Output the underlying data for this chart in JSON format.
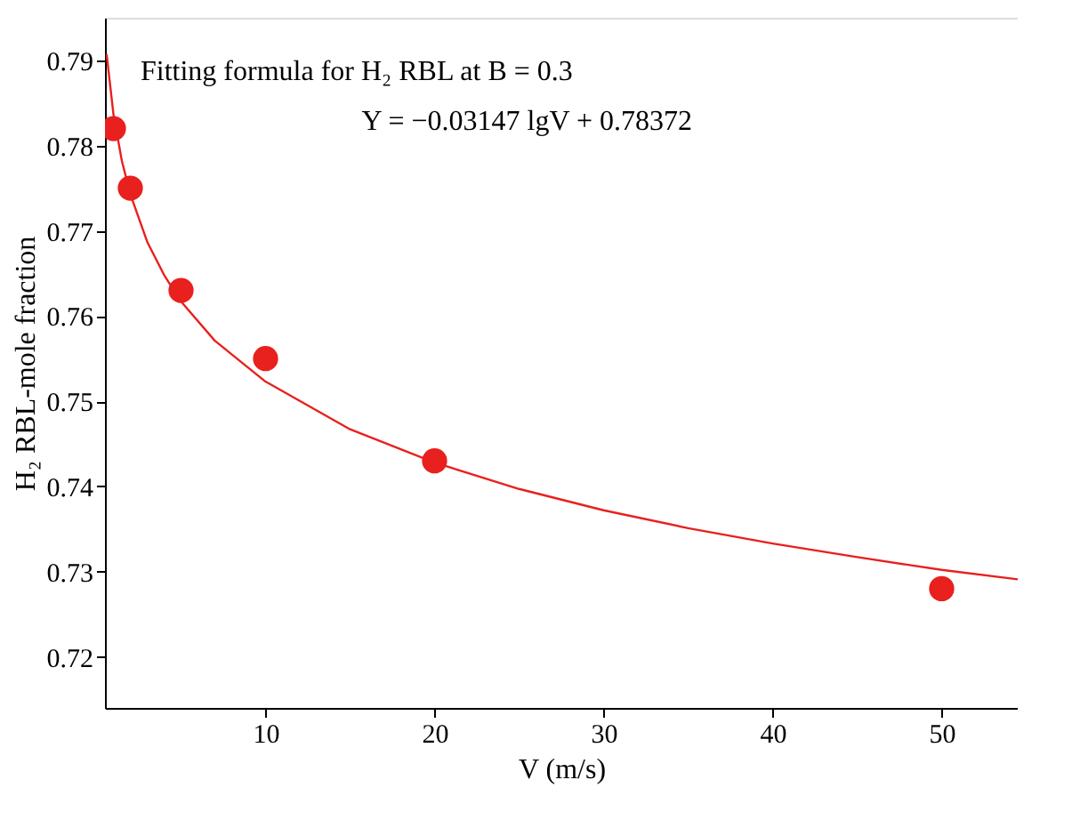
{
  "chart_data": {
    "type": "scatter",
    "xlabel": "V (m/s)",
    "ylabel": "H₂ RBL-mole fraction",
    "xlim": [
      0.5,
      54.5
    ],
    "ylim": [
      0.714,
      0.795
    ],
    "xticks": [
      10,
      20,
      30,
      40,
      50
    ],
    "yticks": [
      0.72,
      0.73,
      0.74,
      0.75,
      0.76,
      0.77,
      0.78,
      0.79
    ],
    "grid": false,
    "annotations": [
      "Fitting formula for H₂ RBL at B = 0.3",
      "Y = −0.03147 lgV + 0.78372"
    ],
    "series": [
      {
        "marker": "circle",
        "color": "#e8201e",
        "x": [
          1,
          2,
          5,
          10,
          20,
          50
        ],
        "values": [
          0.782,
          0.775,
          0.763,
          0.755,
          0.743,
          0.728
        ]
      },
      {
        "type": "line",
        "color": "#e8201e",
        "line_style": "solid",
        "x": [
          0.6,
          1,
          1.5,
          2,
          3,
          4,
          5,
          7,
          10,
          15,
          20,
          25,
          30,
          35,
          40,
          45,
          50,
          54.5
        ],
        "values": [
          0.7907,
          0.7837,
          0.7782,
          0.7743,
          0.7687,
          0.7648,
          0.7617,
          0.7571,
          0.7523,
          0.7467,
          0.7428,
          0.7397,
          0.7372,
          0.7351,
          0.7333,
          0.7317,
          0.7302,
          0.7291
        ]
      }
    ]
  }
}
